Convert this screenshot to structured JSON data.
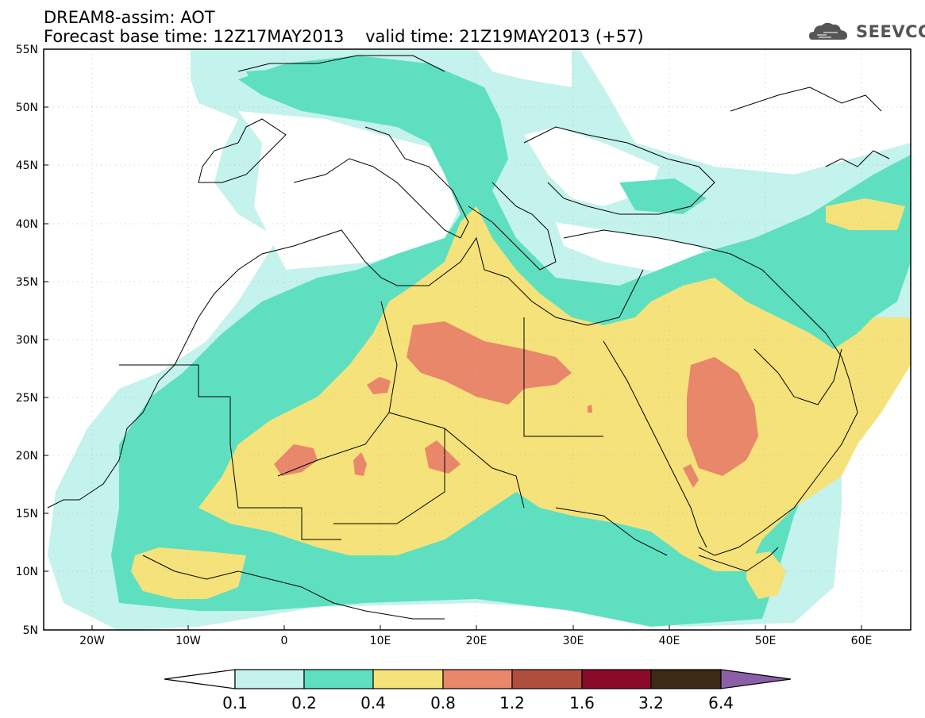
{
  "header": {
    "title": "DREAM8-assim: AOT",
    "base_time_label": "Forecast base time: 12Z17MAY2013",
    "valid_time_label": "valid time: 21Z19MAY2013 (+57)",
    "logo_text": "SEEVCCC",
    "logo_icon": "cloud-icon"
  },
  "map": {
    "lat_labels": [
      "55N",
      "50N",
      "45N",
      "40N",
      "35N",
      "30N",
      "25N",
      "20N",
      "15N",
      "10N",
      "5N"
    ],
    "lon_labels": [
      "20W",
      "10W",
      "0",
      "10E",
      "20E",
      "30E",
      "40E",
      "50E",
      "60E"
    ],
    "colors": {
      "c01": "#c4f2ec",
      "c02": "#5ee0c0",
      "c04": "#f5e27a",
      "c08": "#e8876a",
      "c12": "#b04e3e",
      "c16": "#8a0a2a",
      "c32": "#3d2a14",
      "c64": "#8b5fa8"
    }
  },
  "colorbar": {
    "labels": [
      "0.1",
      "0.2",
      "0.4",
      "0.8",
      "1.2",
      "1.6",
      "3.2",
      "6.4"
    ]
  }
}
